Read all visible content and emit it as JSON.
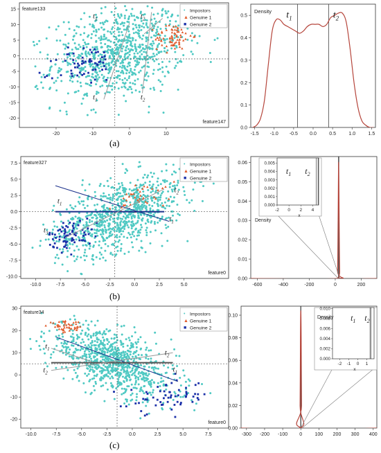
{
  "captions": [
    "(a)",
    "(b)",
    "(c)"
  ],
  "legend_markers": {
    "Impostors": "•",
    "Genuine 1": "▲",
    "Genuine 2": "■"
  },
  "chart_data": [
    {
      "id": "a_scatter",
      "type": "scatter",
      "xlim": [
        -30,
        27
      ],
      "ylim": [
        -23,
        17
      ],
      "xticks": [
        -20,
        -10,
        0,
        10
      ],
      "yticks": [
        -20,
        -15,
        -10,
        -5,
        0,
        5,
        10,
        15
      ],
      "xlabel": "feature147",
      "ylabel": "feature133",
      "hline": -1,
      "vline": -4,
      "legend": {
        "position": "top-right",
        "entries": [
          "Impostors",
          "Genuine 1",
          "Genuine 2"
        ]
      },
      "clusters": [
        {
          "series": "Impostors",
          "color": "#4fc9c3",
          "n": 900,
          "cx": -3,
          "cy": 1,
          "sx": 9,
          "sy": 7.5,
          "rho": 0.25,
          "xr": [
            -28,
            26
          ],
          "yr": [
            -22,
            16
          ]
        },
        {
          "series": "Genuine 1",
          "color": "#e05a2a",
          "n": 70,
          "cx": 12,
          "cy": 6,
          "sx": 2.5,
          "sy": 2.2,
          "rho": 0.1,
          "xr": [
            -28,
            26
          ],
          "yr": [
            -22,
            16
          ]
        },
        {
          "series": "Genuine 2",
          "color": "#1a2fa8",
          "n": 60,
          "cx": -12,
          "cy": -3,
          "sx": 4,
          "sy": 3.5,
          "rho": 0.3,
          "xr": [
            -28,
            26
          ],
          "yr": [
            -22,
            16
          ]
        }
      ],
      "lines": [
        {
          "color": "#9a9a9a",
          "width": 1,
          "pts": [
            [
              -7,
              -14
            ],
            [
              0,
              10.5
            ]
          ]
        },
        {
          "color": "#9a9a9a",
          "width": 1,
          "pts": [
            [
              6,
              14
            ],
            [
              3.5,
              -12
            ]
          ]
        },
        {
          "color": "#9a9a9a",
          "width": 1,
          "pts": [
            [
              4,
              7
            ],
            [
              9,
              12
            ]
          ]
        }
      ],
      "labels": [
        {
          "text": "t1",
          "x": -10,
          "y": 12
        },
        {
          "text": "t2",
          "x": 3,
          "y": 12
        },
        {
          "text": "t1",
          "x": -10,
          "y": -14
        },
        {
          "text": "t2",
          "x": 3,
          "y": -14
        }
      ]
    },
    {
      "id": "a_density",
      "type": "line",
      "xlim": [
        -1.6,
        1.6
      ],
      "ylim": [
        0,
        0.55
      ],
      "xticks": [
        -1.5,
        -1.0,
        -0.5,
        0.0,
        0.5,
        1.0,
        1.5
      ],
      "yticks": [
        0.0,
        0.1,
        0.2,
        0.3,
        0.4,
        0.5
      ],
      "ylabel": "Density",
      "color": "#b5443a",
      "x": [
        -1.55,
        -1.45,
        -1.35,
        -1.25,
        -1.15,
        -1.05,
        -0.95,
        -0.85,
        -0.75,
        -0.65,
        -0.55,
        -0.45,
        -0.35,
        -0.25,
        -0.15,
        -0.05,
        0.05,
        0.15,
        0.25,
        0.35,
        0.45,
        0.55,
        0.65,
        0.75,
        0.85,
        0.95,
        1.05,
        1.15,
        1.25,
        1.35,
        1.45,
        1.55
      ],
      "y": [
        0.0,
        0.01,
        0.04,
        0.12,
        0.28,
        0.43,
        0.48,
        0.48,
        0.46,
        0.45,
        0.44,
        0.43,
        0.42,
        0.43,
        0.45,
        0.46,
        0.46,
        0.46,
        0.45,
        0.46,
        0.49,
        0.5,
        0.51,
        0.51,
        0.47,
        0.35,
        0.2,
        0.09,
        0.03,
        0.01,
        0.0,
        0.0
      ],
      "vlines": [
        -0.4,
        0.4
      ],
      "labels": [
        {
          "text": "t1",
          "x": -0.6,
          "y": 0.49
        },
        {
          "text": "t2",
          "x": 0.6,
          "y": 0.49
        }
      ]
    },
    {
      "id": "b_scatter",
      "type": "scatter",
      "xlim": [
        -11.5,
        9.5
      ],
      "ylim": [
        -10.3,
        8.5
      ],
      "xticks": [
        -10.0,
        -7.5,
        -5.0,
        -2.5,
        0.0,
        2.5,
        5.0
      ],
      "yticks": [
        -10.0,
        -7.5,
        -5.0,
        -2.5,
        0.0,
        2.5,
        5.0,
        7.5
      ],
      "xlabel": "feature0",
      "ylabel": "feature327",
      "hline": 0,
      "vline": -2,
      "legend": {
        "position": "top-right",
        "entries": [
          "Impostors",
          "Genuine 1",
          "Genuine 2"
        ]
      },
      "clusters": [
        {
          "series": "Impostors",
          "color": "#4fc9c3",
          "n": 900,
          "cx": -1.5,
          "cy": -0.5,
          "sx": 3.3,
          "sy": 3.2,
          "rho": 0.55,
          "xr": [
            -11,
            9
          ],
          "yr": [
            -10,
            8
          ]
        },
        {
          "series": "Genuine 1",
          "color": "#e05a2a",
          "n": 40,
          "cx": 1,
          "cy": 2.5,
          "sx": 1.5,
          "sy": 1.2,
          "rho": 0.4,
          "xr": [
            -11,
            9
          ],
          "yr": [
            -10,
            8
          ]
        },
        {
          "series": "Genuine 2",
          "color": "#1a2fa8",
          "n": 70,
          "cx": -6.5,
          "cy": -3.5,
          "sx": 1.1,
          "sy": 1.1,
          "rho": 0.2,
          "xr": [
            -11,
            9
          ],
          "yr": [
            -10,
            8
          ]
        }
      ],
      "lines": [
        {
          "color": "#1a2f8a",
          "width": 1,
          "pts": [
            [
              -8,
              4
            ],
            [
              3.5,
              -1.5
            ]
          ]
        },
        {
          "color": "#1a2f8a",
          "width": 2,
          "pts": [
            [
              -8,
              0
            ],
            [
              3,
              0
            ]
          ]
        },
        {
          "color": "#9a9a9a",
          "width": 1,
          "pts": [
            [
              -7,
              -4
            ],
            [
              3,
              3.5
            ]
          ]
        }
      ],
      "labels": [
        {
          "text": "t1",
          "x": -7.8,
          "y": 1.3
        },
        {
          "text": "t1",
          "x": 3.5,
          "y": -1.5
        },
        {
          "text": "t2",
          "x": 4,
          "y": 3
        },
        {
          "text": "t3",
          "x": -9.2,
          "y": -3.2
        }
      ]
    },
    {
      "id": "b_density",
      "type": "line",
      "xlim": [
        -650,
        320
      ],
      "ylim": [
        0,
        0.063
      ],
      "xticks": [
        -600,
        -400,
        -200,
        0,
        200
      ],
      "yticks": [
        0.0,
        0.01,
        0.02,
        0.03,
        0.04,
        0.05,
        0.06
      ],
      "ylabel": "Density",
      "color": "#b5443a",
      "x": [
        -650,
        10,
        18,
        22,
        26,
        30,
        34,
        42,
        320
      ],
      "y": [
        0.0,
        0.0,
        0.004,
        0.03,
        0.06,
        0.03,
        0.004,
        0.0,
        0.0
      ],
      "vlines": [
        24,
        28
      ],
      "inset": {
        "xlim": [
          -2,
          5
        ],
        "ylim": [
          0,
          0.0056
        ],
        "xticks": [
          -2,
          0,
          2,
          4
        ],
        "yticks": [
          0.0,
          0.001,
          0.002,
          0.003,
          0.004,
          0.005
        ],
        "xlabel": "x",
        "vlines": [
          4.6,
          4.9
        ],
        "labels": [
          {
            "text": "t1",
            "x": -0.5,
            "y": 0.0037
          },
          {
            "text": "t2",
            "x": 2.7,
            "y": 0.0037
          }
        ]
      }
    },
    {
      "id": "c_scatter",
      "type": "scatter",
      "xlim": [
        -11,
        9.5
      ],
      "ylim": [
        -24,
        31
      ],
      "xticks": [
        -10.0,
        -7.5,
        -5.0,
        -2.5,
        0.0,
        2.5,
        5.0,
        7.5
      ],
      "yticks": [
        -20,
        -10,
        0,
        10,
        20,
        30
      ],
      "xlabel": "feature0",
      "ylabel": "feature34",
      "hline": 5,
      "vline": -1.5,
      "legend": {
        "position": "top-right",
        "entries": [
          "Impostors",
          "Genuine 1",
          "Genuine 2"
        ]
      },
      "clusters": [
        {
          "series": "Impostors",
          "color": "#4fc9c3",
          "n": 900,
          "cx": -2,
          "cy": 6,
          "sx": 3.2,
          "sy": 8.5,
          "rho": -0.6,
          "xr": [
            -10.5,
            9
          ],
          "yr": [
            -22,
            28
          ]
        },
        {
          "series": "Genuine 1",
          "color": "#e05a2a",
          "n": 45,
          "cx": -6.5,
          "cy": 21.5,
          "sx": 0.9,
          "sy": 1.3,
          "rho": 0.1,
          "xr": [
            -10.5,
            9
          ],
          "yr": [
            -22,
            28
          ]
        },
        {
          "series": "Genuine 2",
          "color": "#1a2fa8",
          "n": 60,
          "cx": 3.5,
          "cy": -10,
          "sx": 2,
          "sy": 3.5,
          "rho": 0.1,
          "xr": [
            -10.5,
            9
          ],
          "yr": [
            -22,
            28
          ]
        }
      ],
      "lines": [
        {
          "color": "#1a2f8a",
          "width": 1,
          "pts": [
            [
              -7.5,
              17
            ],
            [
              4.5,
              -3
            ]
          ]
        },
        {
          "color": "#555555",
          "width": 2,
          "pts": [
            [
              -8,
              5.5
            ],
            [
              4,
              5.5
            ]
          ]
        },
        {
          "color": "#9a9a9a",
          "width": 1,
          "pts": [
            [
              -8,
              2
            ],
            [
              4,
              10
            ]
          ]
        },
        {
          "color": "#9a9a9a",
          "width": 1,
          "pts": [
            [
              -8,
              12
            ],
            [
              -4,
              6
            ]
          ]
        }
      ],
      "labels": [
        {
          "text": "t1",
          "x": -8.6,
          "y": 12
        },
        {
          "text": "t1",
          "x": 4,
          "y": 1.5
        },
        {
          "text": "t2",
          "x": 3.2,
          "y": 9
        },
        {
          "text": "t2",
          "x": -8.8,
          "y": 1.2
        }
      ]
    },
    {
      "id": "c_density",
      "type": "line",
      "xlim": [
        -330,
        420
      ],
      "ylim": [
        0,
        0.108
      ],
      "xticks": [
        -300,
        -200,
        -100,
        0,
        100,
        200,
        300,
        400
      ],
      "yticks": [
        0.0,
        0.02,
        0.04,
        0.06,
        0.08,
        0.1
      ],
      "ylabel": "Density",
      "color": "#b5443a",
      "x": [
        -330,
        -8,
        -4,
        -2,
        0,
        2,
        4,
        8,
        420
      ],
      "y": [
        0.0,
        0.0,
        0.02,
        0.08,
        0.104,
        0.08,
        0.02,
        0.0,
        0.0
      ],
      "vlines": [
        -1,
        1
      ],
      "inset": {
        "xlim": [
          -2.8,
          1.8
        ],
        "ylim": [
          0,
          0.0102
        ],
        "xticks": [
          -2,
          -1,
          0,
          1
        ],
        "yticks": [
          0.0,
          0.002,
          0.004,
          0.006,
          0.008,
          0.01
        ],
        "xlabel": "x",
        "vlines": [
          1.35,
          1.45
        ],
        "labels": [
          {
            "text": "t1",
            "x": -0.8,
            "y": 0.0076
          },
          {
            "text": "t2",
            "x": 0.75,
            "y": 0.0076
          }
        ]
      }
    }
  ]
}
